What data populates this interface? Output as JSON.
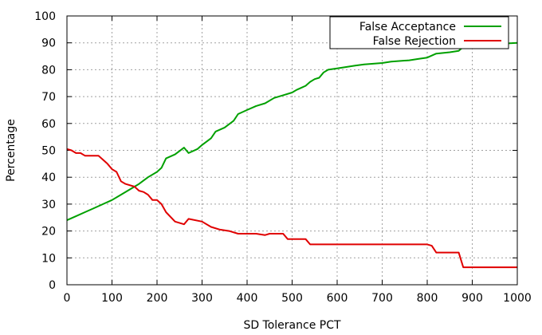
{
  "chart_data": {
    "type": "line",
    "xlabel": "SD Tolerance PCT",
    "ylabel": "Percentage",
    "xlim": [
      0,
      1000
    ],
    "ylim": [
      0,
      100
    ],
    "x_ticks": [
      0,
      100,
      200,
      300,
      400,
      500,
      600,
      700,
      800,
      900,
      1000
    ],
    "y_ticks": [
      0,
      10,
      20,
      30,
      40,
      50,
      60,
      70,
      80,
      90,
      100
    ],
    "grid": true,
    "legend_position": "top-right",
    "series": [
      {
        "name": "False Acceptance",
        "color": "#00a000",
        "points": [
          [
            0,
            24
          ],
          [
            20,
            25.5
          ],
          [
            40,
            27
          ],
          [
            60,
            28.5
          ],
          [
            80,
            30
          ],
          [
            100,
            31.5
          ],
          [
            120,
            33.5
          ],
          [
            140,
            35.5
          ],
          [
            160,
            37.5
          ],
          [
            180,
            40
          ],
          [
            200,
            42
          ],
          [
            210,
            43.5
          ],
          [
            220,
            47
          ],
          [
            240,
            48.5
          ],
          [
            260,
            51
          ],
          [
            270,
            49
          ],
          [
            290,
            50.5
          ],
          [
            300,
            52
          ],
          [
            320,
            54.5
          ],
          [
            330,
            57
          ],
          [
            350,
            58.5
          ],
          [
            370,
            61
          ],
          [
            380,
            63.5
          ],
          [
            400,
            65
          ],
          [
            420,
            66.5
          ],
          [
            440,
            67.5
          ],
          [
            460,
            69.5
          ],
          [
            480,
            70.5
          ],
          [
            500,
            71.5
          ],
          [
            510,
            72.5
          ],
          [
            530,
            74
          ],
          [
            540,
            75.5
          ],
          [
            550,
            76.5
          ],
          [
            560,
            77
          ],
          [
            570,
            79
          ],
          [
            580,
            80
          ],
          [
            600,
            80.5
          ],
          [
            620,
            81
          ],
          [
            640,
            81.5
          ],
          [
            660,
            82
          ],
          [
            700,
            82.5
          ],
          [
            720,
            83
          ],
          [
            760,
            83.5
          ],
          [
            780,
            84
          ],
          [
            800,
            84.5
          ],
          [
            820,
            86
          ],
          [
            850,
            86.5
          ],
          [
            870,
            87
          ],
          [
            880,
            88.5
          ],
          [
            900,
            89
          ],
          [
            950,
            89.5
          ],
          [
            1000,
            90
          ]
        ]
      },
      {
        "name": "False Rejection",
        "color": "#e00000",
        "points": [
          [
            0,
            50.5
          ],
          [
            10,
            50
          ],
          [
            20,
            49
          ],
          [
            30,
            49
          ],
          [
            40,
            48
          ],
          [
            50,
            48
          ],
          [
            60,
            48
          ],
          [
            70,
            48
          ],
          [
            80,
            46.5
          ],
          [
            90,
            45
          ],
          [
            100,
            43
          ],
          [
            110,
            42
          ],
          [
            120,
            38.5
          ],
          [
            130,
            37.5
          ],
          [
            150,
            36.5
          ],
          [
            160,
            35
          ],
          [
            170,
            34.5
          ],
          [
            180,
            33.5
          ],
          [
            190,
            31.5
          ],
          [
            200,
            31.5
          ],
          [
            210,
            30
          ],
          [
            220,
            27
          ],
          [
            240,
            23.5
          ],
          [
            260,
            22.5
          ],
          [
            270,
            24.5
          ],
          [
            300,
            23.5
          ],
          [
            320,
            21.5
          ],
          [
            340,
            20.5
          ],
          [
            360,
            20
          ],
          [
            380,
            19
          ],
          [
            420,
            19
          ],
          [
            440,
            18.5
          ],
          [
            450,
            19
          ],
          [
            480,
            19
          ],
          [
            490,
            17
          ],
          [
            530,
            17
          ],
          [
            540,
            15
          ],
          [
            800,
            15
          ],
          [
            810,
            14.5
          ],
          [
            820,
            12
          ],
          [
            840,
            12
          ],
          [
            850,
            12
          ],
          [
            870,
            12
          ],
          [
            880,
            6.5
          ],
          [
            1000,
            6.5
          ]
        ]
      }
    ]
  }
}
